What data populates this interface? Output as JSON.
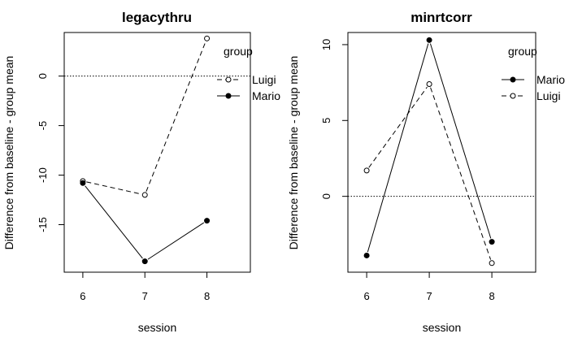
{
  "chart_data": [
    {
      "type": "line",
      "title": "legacythru",
      "xlabel": "session",
      "ylabel": "Difference from baseline - group mean",
      "x": [
        6,
        7,
        8
      ],
      "xlim": [
        5.7,
        8.7
      ],
      "ylim": [
        -19.8,
        4.4
      ],
      "yticks": [
        0,
        -5,
        -10,
        -15
      ],
      "reference_line": 0,
      "grid": false,
      "legend": {
        "title": "group",
        "placement": "top-right",
        "entries": [
          "Luigi",
          "Mario"
        ]
      },
      "series": [
        {
          "name": "Luigi",
          "values": [
            -10.6,
            -12.0,
            3.8
          ],
          "line": "dashed",
          "marker": "open-circle"
        },
        {
          "name": "Mario",
          "values": [
            -10.8,
            -18.7,
            -14.6
          ],
          "line": "solid",
          "marker": "filled-circle"
        }
      ]
    },
    {
      "type": "line",
      "title": "minrtcorr",
      "xlabel": "session",
      "ylabel": "Difference from baseline - group mean",
      "x": [
        6,
        7,
        8
      ],
      "xlim": [
        5.7,
        8.7
      ],
      "ylim": [
        -5.0,
        10.8
      ],
      "yticks": [
        0,
        5,
        10
      ],
      "reference_line": 0,
      "grid": false,
      "legend": {
        "title": "group",
        "placement": "top-right",
        "entries": [
          "Mario",
          "Luigi"
        ]
      },
      "series": [
        {
          "name": "Mario",
          "values": [
            -3.9,
            10.3,
            -3.0
          ],
          "line": "solid",
          "marker": "filled-circle"
        },
        {
          "name": "Luigi",
          "values": [
            1.7,
            7.4,
            -4.4
          ],
          "line": "dashed",
          "marker": "open-circle"
        }
      ]
    }
  ]
}
